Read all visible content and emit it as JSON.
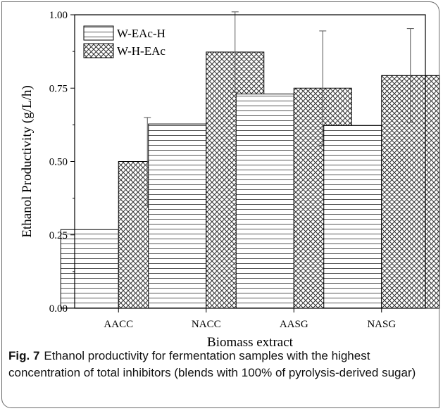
{
  "chart_data": {
    "type": "bar",
    "categories": [
      "AACC",
      "NACC",
      "AASG",
      "NASG"
    ],
    "series": [
      {
        "name": "W-EAc-H",
        "values": [
          0.268,
          0.628,
          0.73,
          0.623
        ],
        "errors": [
          null,
          null,
          null,
          null
        ],
        "pattern": "horizontal-lines"
      },
      {
        "name": "W-H-EAc",
        "values": [
          0.5,
          0.873,
          0.75,
          0.793
        ],
        "errors": [
          0.15,
          0.137,
          0.195,
          0.16
        ],
        "pattern": "crosshatch"
      }
    ],
    "xlabel": "Biomass extract",
    "ylabel": "Ethanol Productivity (g/L/h)",
    "ylim": [
      0,
      1.0
    ],
    "yticks": [
      "0.00",
      "0.25",
      "0.50",
      "0.75",
      "1.00"
    ],
    "legend_position": "top-left",
    "grid": false
  },
  "caption": {
    "label": "Fig. 7",
    "text": "Ethanol productivity for fermentation samples with the highest concentration of total inhibitors (blends with 100% of pyrolysis-derived sugar)"
  },
  "colors": {
    "bar_stroke": "#000000",
    "hatch": "#555555",
    "frame": "#6b6b6b"
  }
}
